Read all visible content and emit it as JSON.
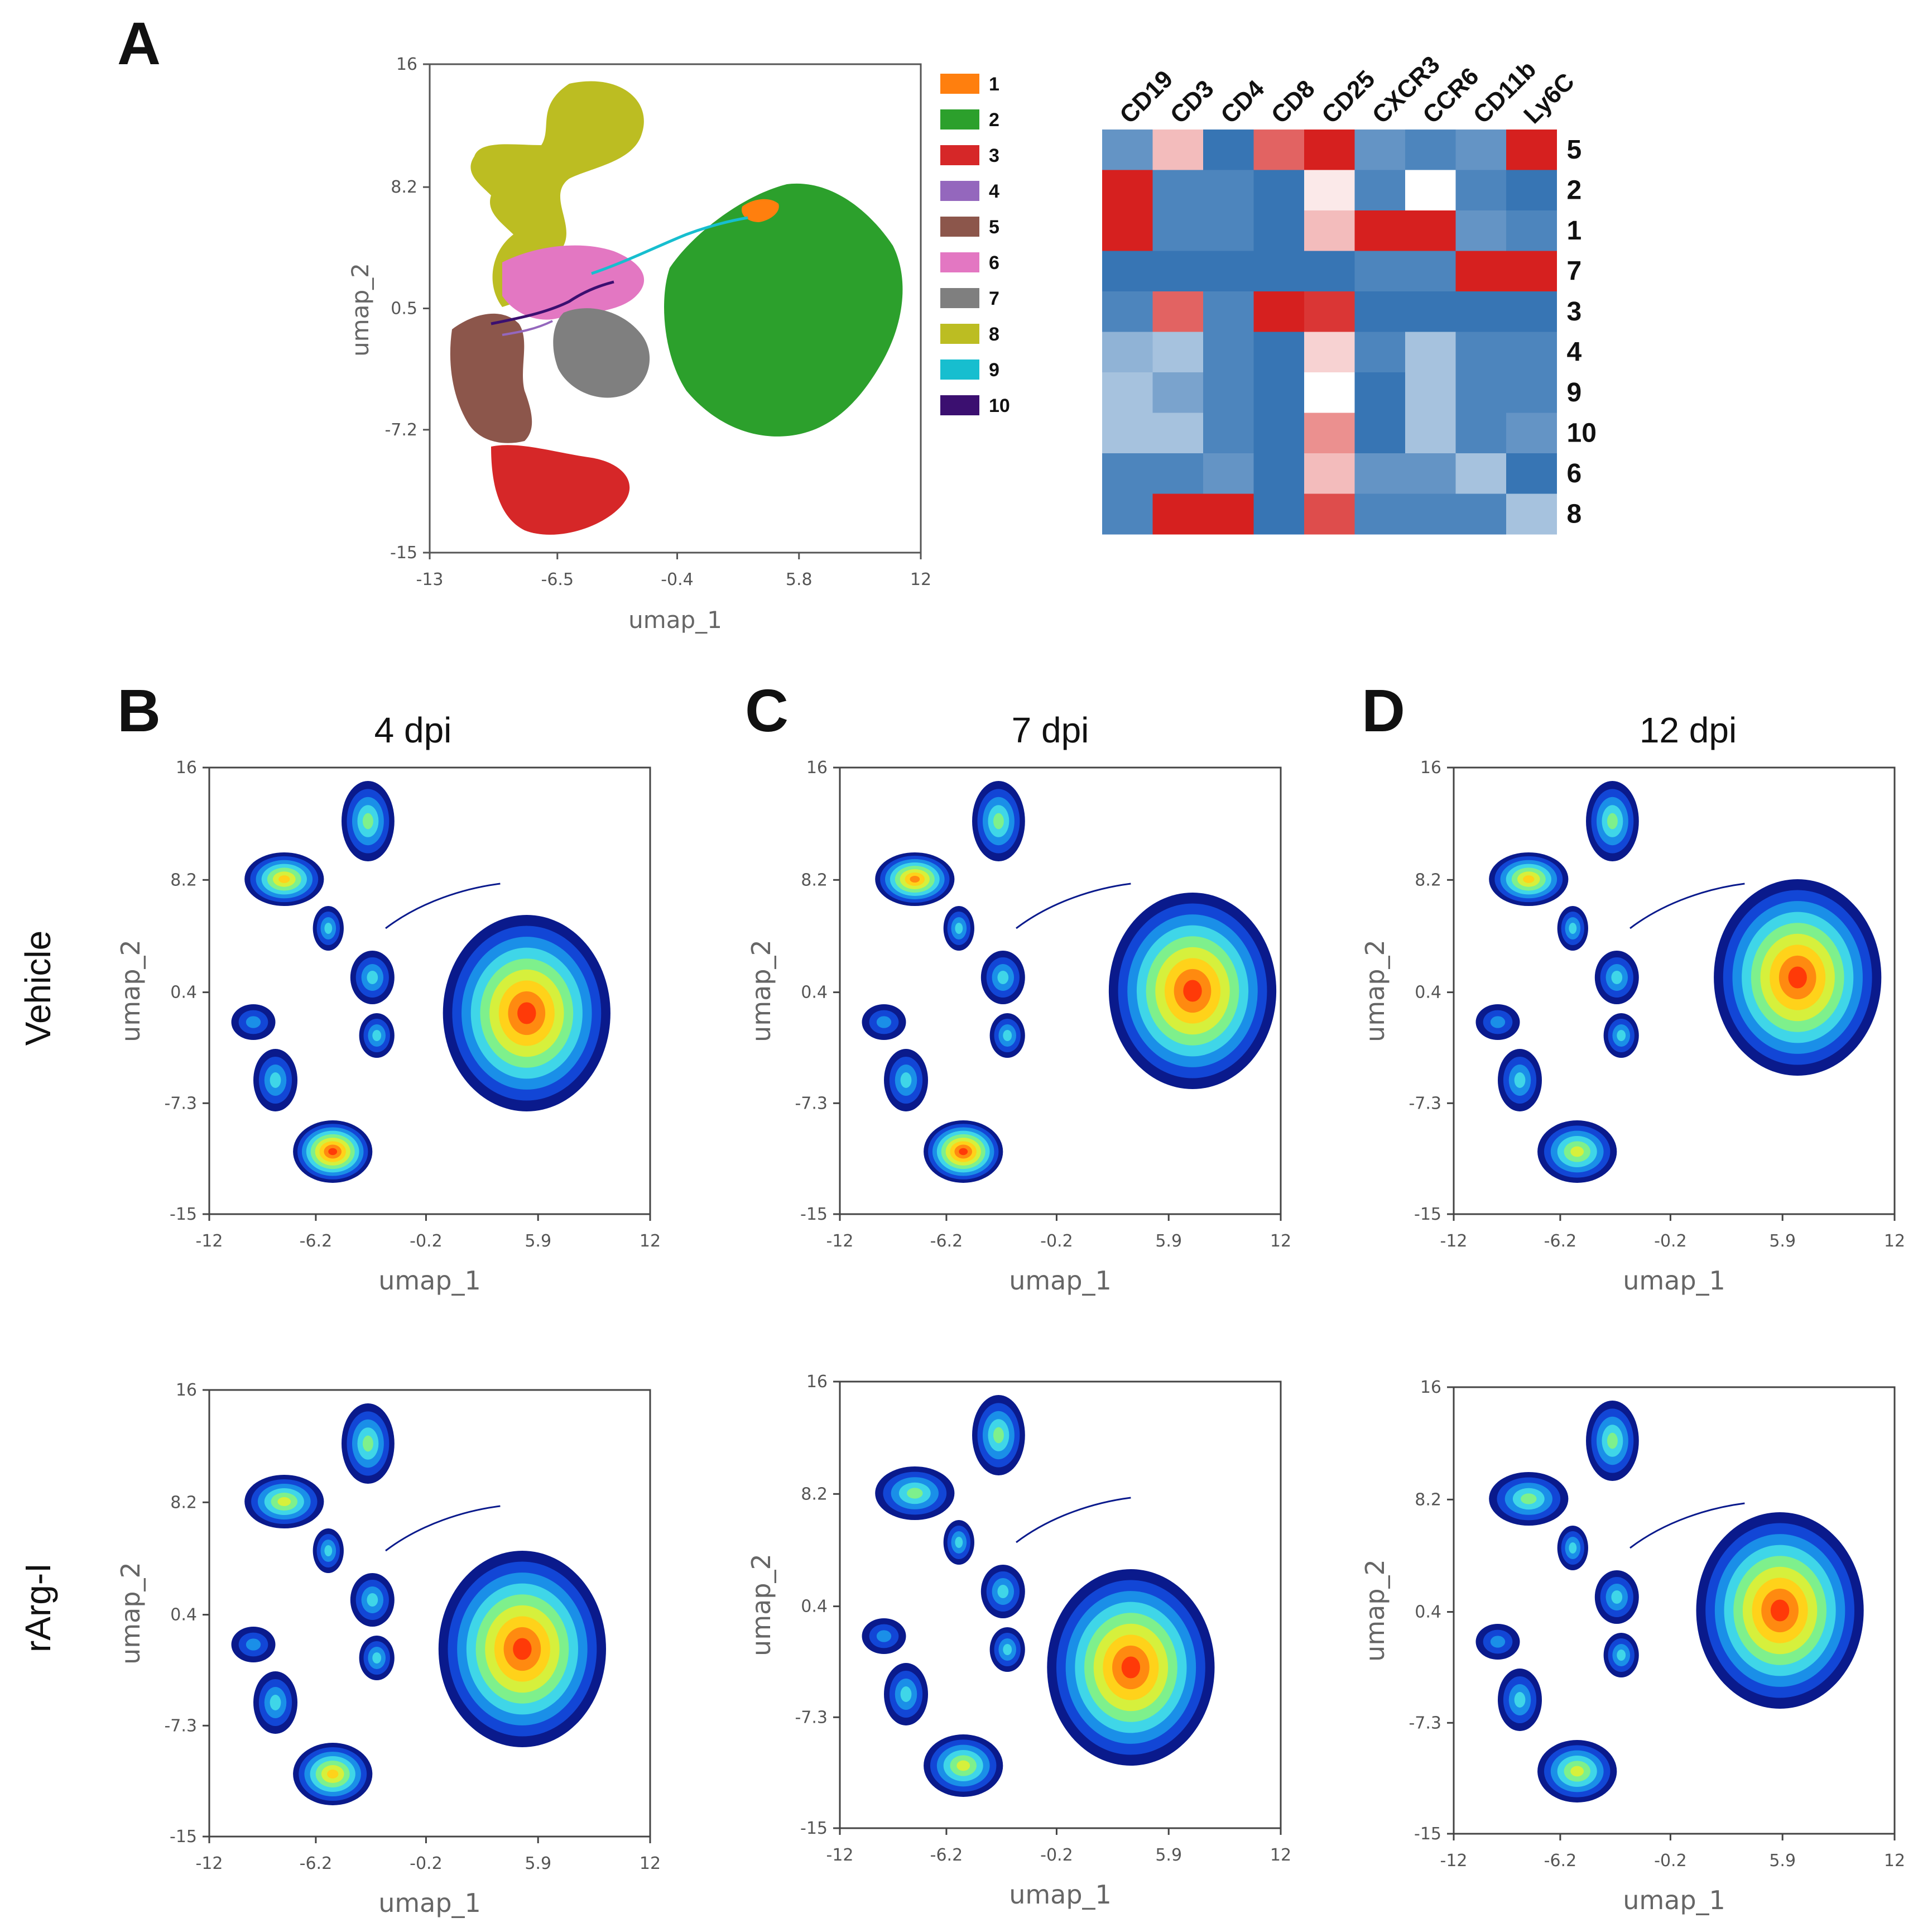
{
  "panels": {
    "A": {
      "letter": "A"
    },
    "B": {
      "letter": "B",
      "title": "4 dpi"
    },
    "C": {
      "letter": "C",
      "title": "7 dpi"
    },
    "D": {
      "letter": "D",
      "title": "12 dpi"
    }
  },
  "row_labels": {
    "vehicle": "Vehicle",
    "rarg": "rArg-I"
  },
  "chart_data": [
    {
      "id": "A-umap",
      "type": "scatter",
      "title": "",
      "xlabel": "umap_1",
      "ylabel": "umap_2",
      "xlim": [
        -13,
        12
      ],
      "ylim": [
        -15,
        16
      ],
      "xticks": [
        "-13",
        "-6.5",
        "-0.4",
        "5.8",
        "12"
      ],
      "xtick_values": [
        -13,
        -6.5,
        -0.4,
        5.8,
        12
      ],
      "yticks": [
        "16",
        "8.2",
        "0.5",
        "-7.2",
        "-15"
      ],
      "ytick_values": [
        16,
        8.2,
        0.5,
        -7.2,
        -15
      ],
      "legend": [
        {
          "label": "1",
          "color": "#ff7f0e"
        },
        {
          "label": "2",
          "color": "#2ca02c"
        },
        {
          "label": "3",
          "color": "#d62728"
        },
        {
          "label": "4",
          "color": "#9467bd"
        },
        {
          "label": "5",
          "color": "#8c564b"
        },
        {
          "label": "6",
          "color": "#e377c2"
        },
        {
          "label": "7",
          "color": "#7f7f7f"
        },
        {
          "label": "8",
          "color": "#bcbd22"
        },
        {
          "label": "9",
          "color": "#17becf"
        },
        {
          "label": "10",
          "color": "#3b0f70"
        }
      ]
    },
    {
      "id": "A-heatmap",
      "type": "heatmap",
      "columns": [
        "CD19",
        "CD3",
        "CD4",
        "CD8",
        "CD25",
        "CXCR3",
        "CCR6",
        "CD11b",
        "Ly6C"
      ],
      "rows": [
        "5",
        "2",
        "1",
        "7",
        "3",
        "4",
        "9",
        "10",
        "6",
        "8"
      ],
      "values": [
        [
          0.15,
          0.65,
          0.05,
          0.85,
          1.0,
          0.15,
          0.1,
          0.15,
          1.0
        ],
        [
          1.0,
          0.1,
          0.1,
          0.05,
          0.55,
          0.1,
          0.5,
          0.1,
          0.05
        ],
        [
          1.0,
          0.1,
          0.1,
          0.05,
          0.65,
          1.0,
          1.0,
          0.15,
          0.1
        ],
        [
          0.05,
          0.05,
          0.05,
          0.05,
          0.05,
          0.1,
          0.1,
          1.0,
          1.0
        ],
        [
          0.1,
          0.85,
          0.1,
          1.0,
          0.95,
          0.05,
          0.05,
          0.05,
          0.05
        ],
        [
          0.25,
          0.3,
          0.1,
          0.05,
          0.6,
          0.1,
          0.3,
          0.1,
          0.1
        ],
        [
          0.3,
          0.2,
          0.1,
          0.05,
          0.5,
          0.05,
          0.3,
          0.1,
          0.1
        ],
        [
          0.3,
          0.3,
          0.1,
          0.05,
          0.75,
          0.05,
          0.3,
          0.1,
          0.15
        ],
        [
          0.1,
          0.1,
          0.15,
          0.05,
          0.65,
          0.15,
          0.15,
          0.3,
          0.05
        ],
        [
          0.1,
          1.0,
          1.0,
          0.05,
          0.9,
          0.1,
          0.1,
          0.1,
          0.3
        ]
      ],
      "colormap": [
        "#2166ac",
        "#ffffff",
        "#d6201f"
      ]
    },
    {
      "id": "B-vehicle",
      "type": "scatter",
      "xlabel": "umap_1",
      "ylabel": "umap_2",
      "xlim": [
        -12,
        12
      ],
      "ylim": [
        -15,
        16
      ],
      "xticks": [
        "-12",
        "-6.2",
        "-0.2",
        "5.9",
        "12"
      ],
      "xtick_values": [
        -12,
        -6.2,
        -0.2,
        5.9,
        12
      ],
      "yticks": [
        "16",
        "8.2",
        "0.4",
        "-7.3",
        "-15"
      ],
      "ytick_values": [
        16,
        8.2,
        0.4,
        -7.3,
        -15
      ]
    },
    {
      "id": "C-vehicle",
      "type": "scatter",
      "xlabel": "umap_1",
      "ylabel": "umap_2",
      "xlim": [
        -12,
        12
      ],
      "ylim": [
        -15,
        16
      ],
      "xticks": [
        "-12",
        "-6.2",
        "-0.2",
        "5.9",
        "12"
      ],
      "xtick_values": [
        -12,
        -6.2,
        -0.2,
        5.9,
        12
      ],
      "yticks": [
        "16",
        "8.2",
        "0.4",
        "-7.3",
        "-15"
      ],
      "ytick_values": [
        16,
        8.2,
        0.4,
        -7.3,
        -15
      ]
    },
    {
      "id": "D-vehicle",
      "type": "scatter",
      "xlabel": "umap_1",
      "ylabel": "umap_2",
      "xlim": [
        -12,
        12
      ],
      "ylim": [
        -15,
        16
      ],
      "xticks": [
        "-12",
        "-6.2",
        "-0.2",
        "5.9",
        "12"
      ],
      "xtick_values": [
        -12,
        -6.2,
        -0.2,
        5.9,
        12
      ],
      "yticks": [
        "16",
        "8.2",
        "0.4",
        "-7.3",
        "-15"
      ],
      "ytick_values": [
        16,
        8.2,
        0.4,
        -7.3,
        -15
      ]
    },
    {
      "id": "B-rarg",
      "type": "scatter",
      "xlabel": "umap_1",
      "ylabel": "umap_2",
      "xlim": [
        -12,
        12
      ],
      "ylim": [
        -15,
        16
      ],
      "xticks": [
        "-12",
        "-6.2",
        "-0.2",
        "5.9",
        "12"
      ],
      "xtick_values": [
        -12,
        -6.2,
        -0.2,
        5.9,
        12
      ],
      "yticks": [
        "16",
        "8.2",
        "0.4",
        "-7.3",
        "-15"
      ],
      "ytick_values": [
        16,
        8.2,
        0.4,
        -7.3,
        -15
      ]
    },
    {
      "id": "C-rarg",
      "type": "scatter",
      "xlabel": "umap_1",
      "ylabel": "umap_2",
      "xlim": [
        -12,
        12
      ],
      "ylim": [
        -15,
        16
      ],
      "xticks": [
        "-12",
        "-6.2",
        "-0.2",
        "5.9",
        "12"
      ],
      "xtick_values": [
        -12,
        -6.2,
        -0.2,
        5.9,
        12
      ],
      "yticks": [
        "16",
        "8.2",
        "0.4",
        "-7.3",
        "-15"
      ],
      "ytick_values": [
        16,
        8.2,
        0.4,
        -7.3,
        -15
      ]
    },
    {
      "id": "D-rarg",
      "type": "scatter",
      "xlabel": "umap_1",
      "ylabel": "umap_2",
      "xlim": [
        -12,
        12
      ],
      "ylim": [
        -15,
        16
      ],
      "xticks": [
        "-12",
        "-6.2",
        "-0.2",
        "5.9",
        "12"
      ],
      "xtick_values": [
        -12,
        -6.2,
        -0.2,
        5.9,
        12
      ],
      "yticks": [
        "16",
        "8.2",
        "0.4",
        "-7.3",
        "-15"
      ],
      "ytick_values": [
        16,
        8.2,
        0.4,
        -7.3,
        -15
      ]
    }
  ]
}
